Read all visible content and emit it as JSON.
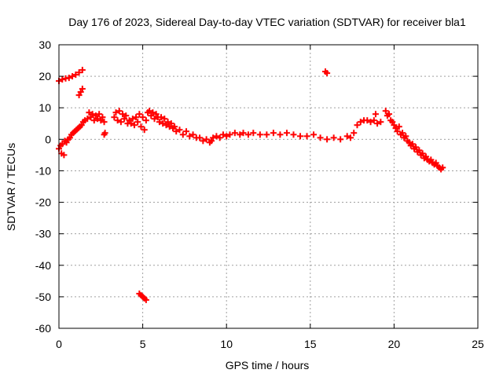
{
  "chart_data": {
    "type": "scatter",
    "title": "Day 176 of 2023, Sidereal Day-to-day VTEC variation (SDTVAR) for receiver bla1",
    "xlabel": "GPS time / hours",
    "ylabel": "SDTVAR / TECUs",
    "xlim": [
      0,
      25
    ],
    "ylim": [
      -60,
      30
    ],
    "x_ticks": [
      0,
      5,
      10,
      15,
      20,
      25
    ],
    "y_ticks": [
      30,
      20,
      10,
      0,
      -10,
      -20,
      -30,
      -40,
      -50,
      -60
    ],
    "grid": true,
    "marker": "+",
    "series": [
      {
        "name": "SDTVAR",
        "color": "#ff0000",
        "points": [
          [
            0.0,
            -3.0
          ],
          [
            0.1,
            -2.0
          ],
          [
            0.15,
            -4.5
          ],
          [
            0.2,
            -1.5
          ],
          [
            0.3,
            -5.0
          ],
          [
            0.35,
            -0.5
          ],
          [
            0.45,
            -1.0
          ],
          [
            0.55,
            0.0
          ],
          [
            0.65,
            0.5
          ],
          [
            0.75,
            1.5
          ],
          [
            0.85,
            2.0
          ],
          [
            0.95,
            2.5
          ],
          [
            1.05,
            3.0
          ],
          [
            1.15,
            3.5
          ],
          [
            1.25,
            4.0
          ],
          [
            1.35,
            4.5
          ],
          [
            1.45,
            5.5
          ],
          [
            1.55,
            6.0
          ],
          [
            0.0,
            18.5
          ],
          [
            0.2,
            19.0
          ],
          [
            0.4,
            19.3
          ],
          [
            0.6,
            19.5
          ],
          [
            0.8,
            20.0
          ],
          [
            1.0,
            20.5
          ],
          [
            1.2,
            21.2
          ],
          [
            1.4,
            22.0
          ],
          [
            1.2,
            14.0
          ],
          [
            1.3,
            15.0
          ],
          [
            1.4,
            16.0
          ],
          [
            1.7,
            6.5
          ],
          [
            1.8,
            8.5
          ],
          [
            1.9,
            7.0
          ],
          [
            2.0,
            8.0
          ],
          [
            2.1,
            6.0
          ],
          [
            2.2,
            7.5
          ],
          [
            2.3,
            6.5
          ],
          [
            2.4,
            8.0
          ],
          [
            2.5,
            6.0
          ],
          [
            2.6,
            7.0
          ],
          [
            2.7,
            5.5
          ],
          [
            2.7,
            1.5
          ],
          [
            2.75,
            2.0
          ],
          [
            3.3,
            7.0
          ],
          [
            3.4,
            8.5
          ],
          [
            3.5,
            6.0
          ],
          [
            3.6,
            9.0
          ],
          [
            3.7,
            5.5
          ],
          [
            3.8,
            8.0
          ],
          [
            3.9,
            6.5
          ],
          [
            4.0,
            7.5
          ],
          [
            4.1,
            5.0
          ],
          [
            4.2,
            6.0
          ],
          [
            4.3,
            5.0
          ],
          [
            4.4,
            6.5
          ],
          [
            4.5,
            4.5
          ],
          [
            4.6,
            7.0
          ],
          [
            4.7,
            5.5
          ],
          [
            4.8,
            8.0
          ],
          [
            4.9,
            4.0
          ],
          [
            5.0,
            7.0
          ],
          [
            5.1,
            3.0
          ],
          [
            5.2,
            6.0
          ],
          [
            5.3,
            8.5
          ],
          [
            5.4,
            9.0
          ],
          [
            5.5,
            7.5
          ],
          [
            5.6,
            8.5
          ],
          [
            5.7,
            6.5
          ],
          [
            5.8,
            8.0
          ],
          [
            5.9,
            7.0
          ],
          [
            6.0,
            5.5
          ],
          [
            6.1,
            7.0
          ],
          [
            6.2,
            5.0
          ],
          [
            6.3,
            6.5
          ],
          [
            6.4,
            4.5
          ],
          [
            6.5,
            5.5
          ],
          [
            6.6,
            4.0
          ],
          [
            6.7,
            5.0
          ],
          [
            6.8,
            3.5
          ],
          [
            6.9,
            4.0
          ],
          [
            7.0,
            2.5
          ],
          [
            7.2,
            3.0
          ],
          [
            7.4,
            1.5
          ],
          [
            7.6,
            2.5
          ],
          [
            7.8,
            1.0
          ],
          [
            8.0,
            1.5
          ],
          [
            8.2,
            0.5
          ],
          [
            8.4,
            0.5
          ],
          [
            8.6,
            -0.5
          ],
          [
            8.8,
            0.0
          ],
          [
            9.0,
            -1.0
          ],
          [
            9.1,
            -0.5
          ],
          [
            9.2,
            0.5
          ],
          [
            9.4,
            1.0
          ],
          [
            9.6,
            0.5
          ],
          [
            9.8,
            1.5
          ],
          [
            10.0,
            1.0
          ],
          [
            10.2,
            1.5
          ],
          [
            10.5,
            2.0
          ],
          [
            10.8,
            1.5
          ],
          [
            11.0,
            2.0
          ],
          [
            11.3,
            1.5
          ],
          [
            11.6,
            2.0
          ],
          [
            12.0,
            1.5
          ],
          [
            12.4,
            1.5
          ],
          [
            12.8,
            2.0
          ],
          [
            13.2,
            1.5
          ],
          [
            13.6,
            2.0
          ],
          [
            14.0,
            1.5
          ],
          [
            14.4,
            1.0
          ],
          [
            14.8,
            1.0
          ],
          [
            15.2,
            1.5
          ],
          [
            15.6,
            0.5
          ],
          [
            16.0,
            0.0
          ],
          [
            16.4,
            0.5
          ],
          [
            16.8,
            0.0
          ],
          [
            17.2,
            1.0
          ],
          [
            17.4,
            0.5
          ],
          [
            17.6,
            2.0
          ],
          [
            17.8,
            4.5
          ],
          [
            18.0,
            5.5
          ],
          [
            18.2,
            6.0
          ],
          [
            18.4,
            6.0
          ],
          [
            18.6,
            5.5
          ],
          [
            18.8,
            6.0
          ],
          [
            19.0,
            5.0
          ],
          [
            19.2,
            5.5
          ],
          [
            18.9,
            8.0
          ],
          [
            15.9,
            21.5
          ],
          [
            16.0,
            21.0
          ],
          [
            19.5,
            9.0
          ],
          [
            19.6,
            7.5
          ],
          [
            19.7,
            8.0
          ],
          [
            19.8,
            6.0
          ],
          [
            19.9,
            5.5
          ],
          [
            20.0,
            4.5
          ],
          [
            20.1,
            3.5
          ],
          [
            20.2,
            2.5
          ],
          [
            20.3,
            4.0
          ],
          [
            20.4,
            1.5
          ],
          [
            20.5,
            2.0
          ],
          [
            20.6,
            0.5
          ],
          [
            20.7,
            1.0
          ],
          [
            20.8,
            -0.5
          ],
          [
            20.9,
            -1.0
          ],
          [
            21.0,
            -2.0
          ],
          [
            21.1,
            -1.5
          ],
          [
            21.2,
            -3.0
          ],
          [
            21.3,
            -2.5
          ],
          [
            21.4,
            -4.0
          ],
          [
            21.5,
            -3.5
          ],
          [
            21.6,
            -5.0
          ],
          [
            21.7,
            -4.5
          ],
          [
            21.8,
            -6.0
          ],
          [
            21.9,
            -5.5
          ],
          [
            22.0,
            -6.5
          ],
          [
            22.1,
            -7.0
          ],
          [
            22.2,
            -6.5
          ],
          [
            22.3,
            -7.5
          ],
          [
            22.4,
            -8.0
          ],
          [
            22.5,
            -7.5
          ],
          [
            22.6,
            -8.5
          ],
          [
            22.7,
            -9.0
          ],
          [
            22.8,
            -9.5
          ],
          [
            22.9,
            -9.0
          ],
          [
            4.8,
            -49.0
          ],
          [
            4.9,
            -49.5
          ],
          [
            5.0,
            -50.0
          ],
          [
            5.1,
            -50.5
          ],
          [
            5.2,
            -51.0
          ]
        ]
      }
    ]
  }
}
